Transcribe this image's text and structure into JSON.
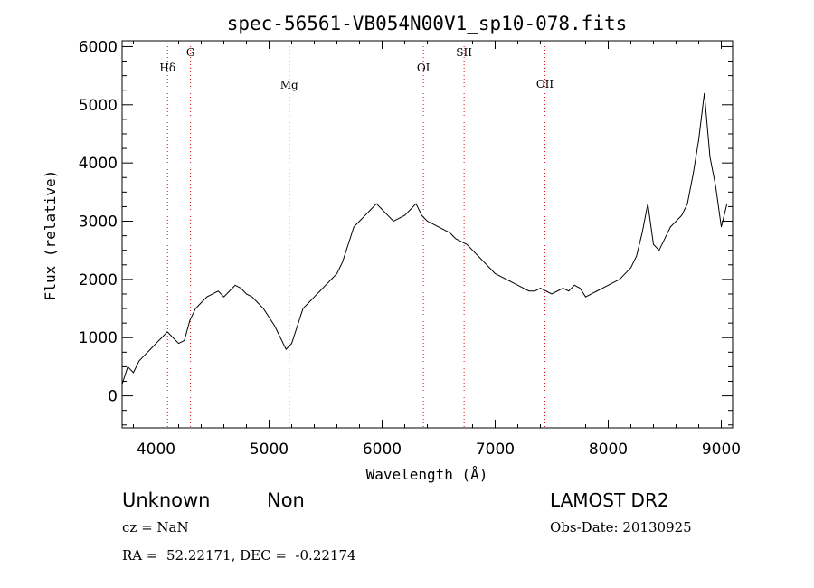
{
  "chart_data": {
    "type": "line",
    "title": "spec-56561-VB054N00V1_sp10-078.fits",
    "xlabel": "Wavelength (Å)",
    "ylabel": "Flux (relative)",
    "xlim": [
      3700,
      9100
    ],
    "ylim": [
      -550,
      6100
    ],
    "x_ticks": [
      4000,
      5000,
      6000,
      7000,
      8000,
      9000
    ],
    "y_ticks": [
      0,
      1000,
      2000,
      3000,
      4000,
      5000,
      6000
    ],
    "grid": false,
    "series": [
      {
        "x": [
          3700,
          3750,
          3800,
          3850,
          3900,
          3950,
          4000,
          4050,
          4100,
          4150,
          4200,
          4250,
          4300,
          4350,
          4400,
          4450,
          4500,
          4550,
          4600,
          4650,
          4700,
          4750,
          4800,
          4850,
          4900,
          4950,
          5000,
          5050,
          5100,
          5150,
          5200,
          5250,
          5300,
          5350,
          5400,
          5450,
          5500,
          5550,
          5600,
          5650,
          5700,
          5750,
          5800,
          5850,
          5900,
          5950,
          6000,
          6050,
          6100,
          6150,
          6200,
          6250,
          6300,
          6350,
          6400,
          6450,
          6500,
          6550,
          6600,
          6650,
          6700,
          6750,
          6800,
          6850,
          6900,
          6950,
          7000,
          7050,
          7100,
          7150,
          7200,
          7250,
          7300,
          7350,
          7400,
          7450,
          7500,
          7550,
          7600,
          7650,
          7700,
          7750,
          7800,
          7850,
          7900,
          7950,
          8000,
          8050,
          8100,
          8150,
          8200,
          8250,
          8300,
          8350,
          8400,
          8450,
          8500,
          8550,
          8600,
          8650,
          8700,
          8750,
          8800,
          8850,
          8900,
          8950,
          9000,
          9050
        ],
        "y": [
          200,
          500,
          400,
          600,
          700,
          800,
          900,
          1000,
          1100,
          1000,
          900,
          950,
          1300,
          1500,
          1600,
          1700,
          1750,
          1800,
          1700,
          1800,
          1900,
          1850,
          1750,
          1700,
          1600,
          1500,
          1350,
          1200,
          1000,
          800,
          900,
          1200,
          1500,
          1600,
          1700,
          1800,
          1900,
          2000,
          2100,
          2300,
          2600,
          2900,
          3000,
          3100,
          3200,
          3300,
          3200,
          3100,
          3000,
          3050,
          3100,
          3200,
          3300,
          3100,
          3000,
          2950,
          2900,
          2850,
          2800,
          2700,
          2650,
          2600,
          2500,
          2400,
          2300,
          2200,
          2100,
          2050,
          2000,
          1950,
          1900,
          1850,
          1800,
          1800,
          1850,
          1800,
          1750,
          1800,
          1850,
          1800,
          1900,
          1850,
          1700,
          1750,
          1800,
          1850,
          1900,
          1950,
          2000,
          2100,
          2200,
          2400,
          2800,
          3300,
          2600,
          2500,
          2700,
          2900,
          3000,
          3100,
          3300,
          3800,
          4400,
          5200,
          4100,
          3600,
          2900,
          3300
        ]
      }
    ],
    "line_markers": [
      {
        "label": "Hδ",
        "x": 4102
      },
      {
        "label": "G",
        "x": 4305
      },
      {
        "label": "Mg",
        "x": 5178
      },
      {
        "label": "OI",
        "x": 6365
      },
      {
        "label": "SII",
        "x": 6725
      },
      {
        "label": "OII",
        "x": 7440
      }
    ]
  },
  "info": {
    "class_text": "Unknown",
    "subclass_text": "Non",
    "cz_text": "cz = NaN",
    "radec_text": "RA =  52.22171, DEC =  -0.22174",
    "survey_text": "LAMOST DR2",
    "obsdate_text": "Obs-Date: 20130925"
  }
}
